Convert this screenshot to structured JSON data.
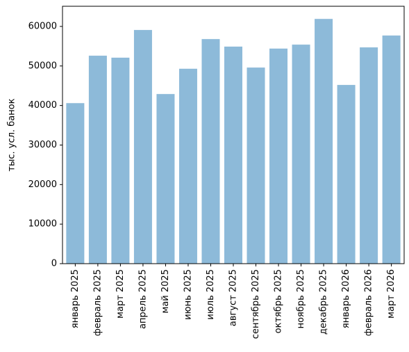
{
  "chart_data": {
    "type": "bar",
    "y_label": "тыс. усл. банок",
    "categories": [
      "январь 2025",
      "февраль 2025",
      "март 2025",
      "апрель 2025",
      "май 2025",
      "июнь 2025",
      "июль 2025",
      "август 2025",
      "сентябрь 2025",
      "октябрь 2025",
      "ноябрь 2025",
      "декабрь 2025",
      "январь 2026",
      "февраль 2026",
      "март 2026"
    ],
    "values": [
      40600,
      52600,
      52100,
      59100,
      42900,
      49300,
      56800,
      54900,
      49600,
      54400,
      55400,
      61900,
      45200,
      54700,
      57700
    ],
    "color": "#8dbad9",
    "ylim": [
      0,
      65100
    ],
    "yticks": [
      0,
      10000,
      20000,
      30000,
      40000,
      50000,
      60000
    ],
    "grid": false
  }
}
